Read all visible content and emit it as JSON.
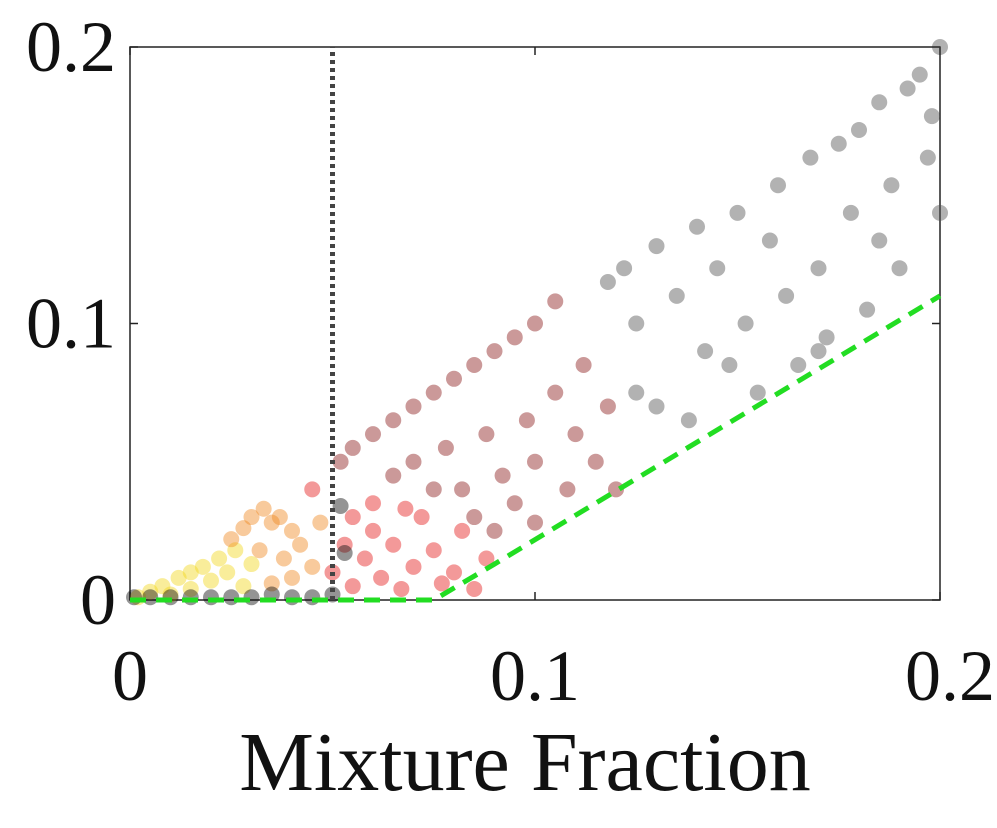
{
  "chart_data": {
    "type": "scatter",
    "xlabel": "Mixture Fraction",
    "xlim": [
      0,
      0.2
    ],
    "ylim": [
      0,
      0.2
    ],
    "xticks": [
      0,
      0.1,
      0.2
    ],
    "yticks": [
      0,
      0.1,
      0.2
    ],
    "grid": false,
    "opacity": 0.45,
    "series": [
      {
        "color": "#f2d81e",
        "x": [
          0.002,
          0.005,
          0.008,
          0.01,
          0.012,
          0.015,
          0.015,
          0.018,
          0.02,
          0.022,
          0.024,
          0.026,
          0.028,
          0.03
        ],
        "values": [
          0.001,
          0.003,
          0.005,
          0.002,
          0.008,
          0.01,
          0.004,
          0.012,
          0.007,
          0.015,
          0.01,
          0.018,
          0.005,
          0.013
        ]
      },
      {
        "color": "#f08a24",
        "x": [
          0.025,
          0.028,
          0.03,
          0.033,
          0.035,
          0.037,
          0.04,
          0.042,
          0.032,
          0.038,
          0.045,
          0.04,
          0.035,
          0.047
        ],
        "values": [
          0.022,
          0.026,
          0.03,
          0.033,
          0.028,
          0.03,
          0.025,
          0.02,
          0.018,
          0.015,
          0.012,
          0.008,
          0.006,
          0.028
        ]
      },
      {
        "color": "#e41c1c",
        "x": [
          0.045,
          0.05,
          0.053,
          0.055,
          0.058,
          0.06,
          0.062,
          0.065,
          0.067,
          0.07,
          0.072,
          0.075,
          0.077,
          0.08,
          0.082,
          0.085,
          0.088,
          0.06,
          0.055,
          0.068
        ],
        "values": [
          0.04,
          0.01,
          0.02,
          0.005,
          0.015,
          0.025,
          0.008,
          0.02,
          0.004,
          0.012,
          0.03,
          0.018,
          0.006,
          0.01,
          0.025,
          0.004,
          0.015,
          0.035,
          0.03,
          0.033
        ]
      },
      {
        "color": "#8b1c1c",
        "x": [
          0.052,
          0.055,
          0.06,
          0.065,
          0.07,
          0.075,
          0.08,
          0.085,
          0.09,
          0.095,
          0.1,
          0.105,
          0.065,
          0.07,
          0.078,
          0.082,
          0.088,
          0.092,
          0.095,
          0.098,
          0.1,
          0.105,
          0.108,
          0.11,
          0.112,
          0.115,
          0.118,
          0.12,
          0.075,
          0.085,
          0.09,
          0.1
        ],
        "values": [
          0.05,
          0.055,
          0.06,
          0.065,
          0.07,
          0.075,
          0.08,
          0.085,
          0.09,
          0.095,
          0.1,
          0.108,
          0.045,
          0.05,
          0.055,
          0.04,
          0.06,
          0.045,
          0.035,
          0.065,
          0.05,
          0.075,
          0.04,
          0.06,
          0.085,
          0.05,
          0.07,
          0.04,
          0.04,
          0.03,
          0.025,
          0.028
        ]
      },
      {
        "color": "#555555",
        "x": [
          0.118,
          0.122,
          0.125,
          0.13,
          0.135,
          0.14,
          0.142,
          0.145,
          0.15,
          0.152,
          0.155,
          0.158,
          0.16,
          0.162,
          0.165,
          0.168,
          0.17,
          0.172,
          0.175,
          0.178,
          0.18,
          0.182,
          0.185,
          0.188,
          0.19,
          0.192,
          0.195,
          0.197,
          0.2,
          0.2,
          0.198,
          0.13,
          0.138,
          0.125,
          0.148,
          0.17,
          0.185
        ],
        "values": [
          0.115,
          0.12,
          0.1,
          0.128,
          0.11,
          0.135,
          0.09,
          0.12,
          0.14,
          0.1,
          0.075,
          0.13,
          0.15,
          0.11,
          0.085,
          0.16,
          0.12,
          0.095,
          0.165,
          0.14,
          0.17,
          0.105,
          0.18,
          0.15,
          0.12,
          0.185,
          0.19,
          0.16,
          0.2,
          0.14,
          0.175,
          0.07,
          0.065,
          0.075,
          0.085,
          0.09,
          0.13
        ]
      },
      {
        "color": "#111111",
        "x": [
          0.001,
          0.005,
          0.01,
          0.015,
          0.02,
          0.025,
          0.03,
          0.035,
          0.04,
          0.045,
          0.05,
          0.052,
          0.053
        ],
        "values": [
          0.001,
          0.001,
          0.001,
          0.001,
          0.001,
          0.001,
          0.001,
          0.002,
          0.001,
          0.001,
          0.002,
          0.034,
          0.017
        ]
      }
    ],
    "reference_lines": [
      {
        "color": "#444444",
        "style": "dotted",
        "x": [
          0.05,
          0.05
        ],
        "values": [
          0,
          0.2
        ]
      },
      {
        "color": "#22dd22",
        "style": "dashed",
        "x": [
          0,
          0.075,
          0.09,
          0.2
        ],
        "values": [
          0,
          0,
          0.013,
          0.11
        ]
      }
    ]
  }
}
